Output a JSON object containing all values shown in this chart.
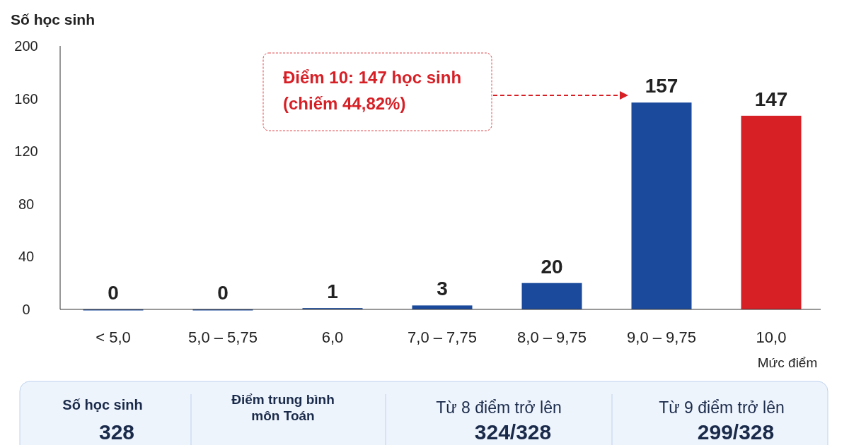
{
  "chart_data": {
    "type": "bar",
    "ylabel": "Số học sinh",
    "xlabel": "Mức điểm",
    "categories": [
      "< 5,0",
      "5,0 – 5,75",
      "6,0",
      "7,0 – 7,75",
      "8,0 – 9,75",
      "9,0 – 9,75",
      "10,0"
    ],
    "values": [
      0,
      0,
      1,
      3,
      20,
      157,
      147
    ],
    "colors": [
      "#1b4a9c",
      "#1b4a9c",
      "#1b4a9c",
      "#1b4a9c",
      "#1b4a9c",
      "#1b4a9c",
      "#d71f26"
    ],
    "ylim": [
      0,
      200
    ],
    "yticks": [
      0,
      40,
      80,
      120,
      160,
      200
    ],
    "data_labels": true,
    "grid": false,
    "annotations": [
      "Điểm 10: 147 học sinh\n(chiếm 44,82%)",
      "Số học sinh",
      "328",
      "Điểm trung bình\nmôn Toán",
      "Từ 8 điểm trở lên",
      "324/328",
      "Từ 9 điểm trở lên",
      "299/328"
    ]
  }
}
